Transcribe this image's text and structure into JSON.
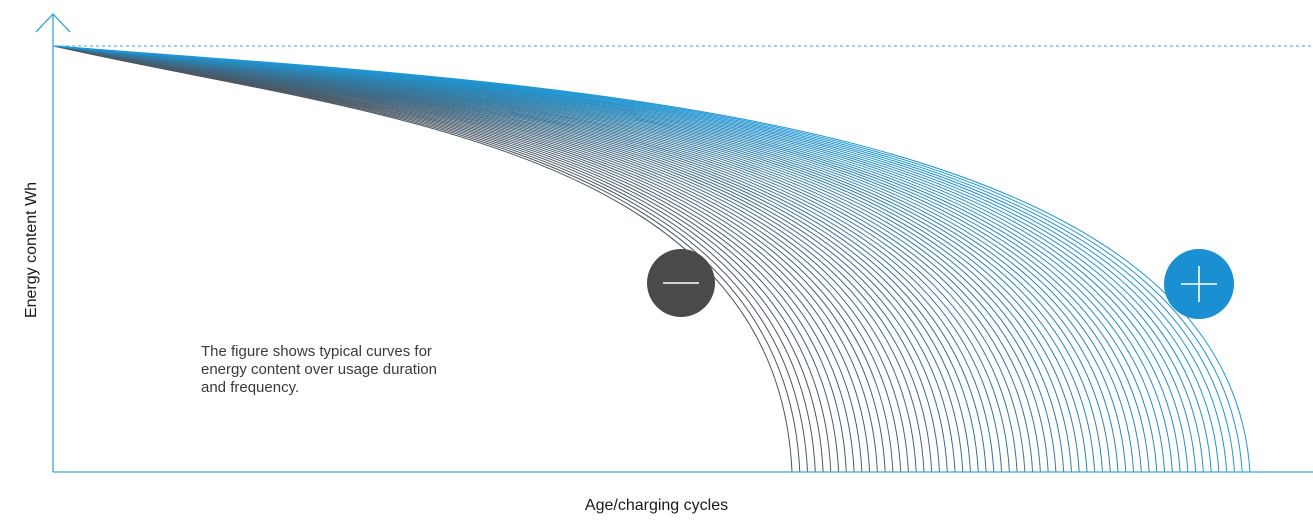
{
  "chart_data": {
    "type": "line",
    "title": "",
    "xlabel": "Age/charging cycles",
    "ylabel": "Energy content Wh",
    "x_ticks": [],
    "y_ticks": [],
    "grid": false,
    "reference_line": {
      "style": "dashed",
      "level": 1.0
    },
    "curve_family": {
      "count": 60,
      "worst_case_end_x": 0.63,
      "best_case_end_x": 1.0
    },
    "annotations": [
      {
        "label": "minus",
        "meaning": "worst case"
      },
      {
        "label": "plus",
        "meaning": "best case"
      }
    ],
    "caption": [
      "The figure shows typical curves for",
      "energy content over usage duration",
      "and frequency."
    ]
  },
  "colors": {
    "axis": "#3fa3d6",
    "curve_dark": "#4c5560",
    "curve_blue": "#1f97d6",
    "minus_badge": "#4a4a4a",
    "plus_badge": "#1a8fd2"
  }
}
